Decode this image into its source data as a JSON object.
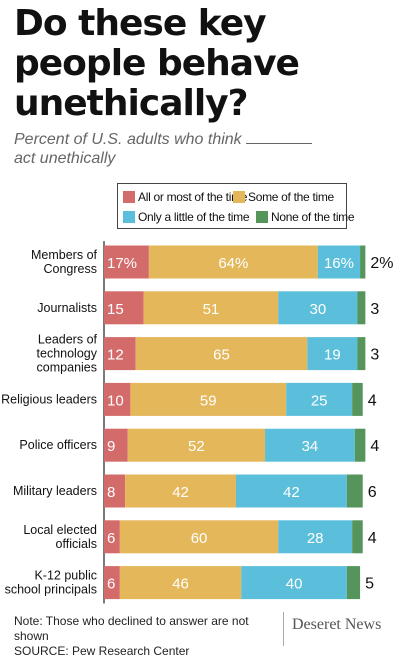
{
  "title": "Do these key people behave unethically?",
  "subtitle": "Percent of U.S. adults who think",
  "subtitle_line2": "act unethically",
  "legend": [
    {
      "label": "All or most of the time",
      "color": "#d46b6b"
    },
    {
      "label": "Some of the time",
      "color": "#e3b75a"
    },
    {
      "label": "Only a little of the time",
      "color": "#5bbfdc"
    },
    {
      "label": "None of the time",
      "color": "#55955b"
    }
  ],
  "chart_data": {
    "type": "bar",
    "orientation": "horizontal",
    "stacked": true,
    "categories": [
      "Members of Congress",
      "Journalists",
      "Leaders of technology companies",
      "Religious leaders",
      "Police officers",
      "Military leaders",
      "Local elected officials",
      "K-12 public school principals"
    ],
    "series": [
      {
        "name": "All or most of the time",
        "color": "#d46b6b",
        "values": [
          17,
          15,
          12,
          10,
          9,
          8,
          6,
          6
        ]
      },
      {
        "name": "Some of the time",
        "color": "#e3b75a",
        "values": [
          64,
          51,
          65,
          59,
          52,
          42,
          60,
          46
        ]
      },
      {
        "name": "Only a little of the time",
        "color": "#5bbfdc",
        "values": [
          16,
          30,
          19,
          25,
          34,
          42,
          28,
          40
        ]
      },
      {
        "name": "None of the time",
        "color": "#55955b",
        "values": [
          2,
          3,
          3,
          4,
          4,
          6,
          4,
          5
        ]
      }
    ],
    "value_labels": [
      [
        "17%",
        "64%",
        "16%",
        "2%"
      ],
      [
        "15",
        "51",
        "30",
        "3"
      ],
      [
        "12",
        "65",
        "19",
        "3"
      ],
      [
        "10",
        "59",
        "25",
        "4"
      ],
      [
        "9",
        "52",
        "34",
        "4"
      ],
      [
        "8",
        "42",
        "42",
        "6"
      ],
      [
        "6",
        "60",
        "28",
        "4"
      ],
      [
        "6",
        "46",
        "40",
        "5"
      ]
    ],
    "category_lines": [
      [
        "Members of",
        "Congress"
      ],
      [
        "Journalists"
      ],
      [
        "Leaders of",
        "technology",
        "companies"
      ],
      [
        "Religious leaders"
      ],
      [
        "Police officers"
      ],
      [
        "Military leaders"
      ],
      [
        "Local elected",
        "officials"
      ],
      [
        "K-12 public",
        "school principals"
      ]
    ],
    "xlim": [
      0,
      100
    ],
    "legend_position": "top",
    "grid": false
  },
  "footer": {
    "note": "Note: Those who declined to answer are not shown",
    "source": "SOURCE: Pew Research Center"
  },
  "brand": "Deseret News"
}
